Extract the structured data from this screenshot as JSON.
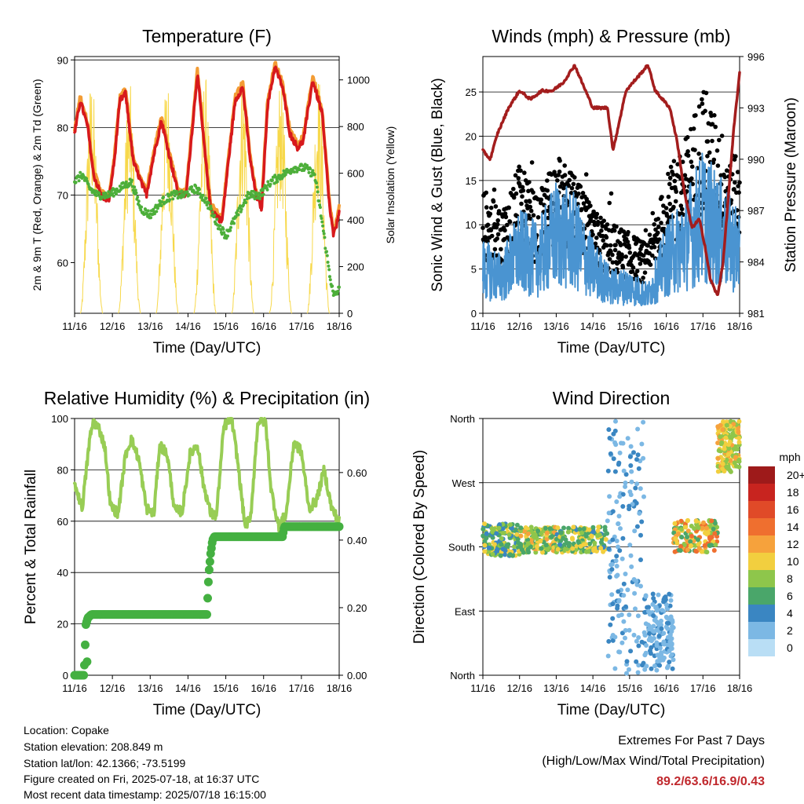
{
  "info": {
    "location": "Location: Copake",
    "elevation": "Station elevation: 208.849 m",
    "latlon": "Station lat/lon: 42.1366; -73.5199",
    "created": "Figure created on Fri, 2025-07-18, at 16:37 UTC",
    "recent": "Most recent data timestamp: 2025/07/18 16:15:00"
  },
  "extremes": {
    "line1": "Extremes For Past 7 Days",
    "line2": "(High/Low/Max Wind/Total Precipitation)",
    "values": "89.2/63.6/16.9/0.43"
  },
  "colors": {
    "temp_9m": "#d7191c",
    "temp_2m": "#f39c34",
    "dewpoint": "#4daf3a",
    "solar": "#f7d84a",
    "gust": "#000000",
    "wind": "#4a94d1",
    "pressure": "#a31d1d",
    "rh": "#98cd55",
    "precip": "#44b041"
  },
  "chart_data": [
    {
      "type": "line",
      "title": "Temperature (F)",
      "xlabel": "Time (Day/UTC)",
      "ylabel": "2m & 9m T (Red, Orange) & 2m Td (Green)",
      "y2label": "Solar Insolation (Yellow)",
      "x_ticks": [
        "11/16",
        "12/16",
        "13/16",
        "14/16",
        "15/16",
        "16/16",
        "17/16",
        "18/16"
      ],
      "xlim": [
        0,
        7
      ],
      "ylim": [
        52.5,
        90.5
      ],
      "y_ticks": [
        60,
        70,
        80,
        90
      ],
      "y2lim": [
        0,
        1100
      ],
      "y2_ticks": [
        0,
        200,
        400,
        600,
        800,
        1000
      ],
      "grid": "horizontal",
      "series": [
        {
          "name": "2m & 9m T",
          "axis": "left",
          "x": [
            0,
            0.15,
            0.35,
            0.5,
            0.7,
            0.9,
            1.05,
            1.2,
            1.35,
            1.55,
            1.75,
            1.9,
            2.1,
            2.3,
            2.5,
            2.75,
            2.95,
            3.1,
            3.25,
            3.45,
            3.6,
            3.75,
            3.9,
            4.05,
            4.25,
            4.45,
            4.65,
            4.8,
            4.95,
            5.1,
            5.3,
            5.5,
            5.7,
            5.9,
            6.05,
            6.3,
            6.55,
            6.75,
            6.85,
            6.95,
            7.0
          ],
          "values": [
            79,
            84,
            80,
            73,
            70,
            69,
            75,
            84,
            85,
            75,
            72,
            70,
            76,
            81,
            76,
            70,
            70,
            79,
            88,
            76,
            68,
            67,
            66,
            74,
            84,
            86,
            75,
            70,
            68,
            83,
            89,
            86,
            79,
            77,
            78,
            87,
            82,
            68,
            64,
            66,
            68
          ]
        },
        {
          "name": "2m Td",
          "axis": "left",
          "x": [
            0,
            0.2,
            0.4,
            0.6,
            0.9,
            1.2,
            1.5,
            1.75,
            2.0,
            2.3,
            2.6,
            2.9,
            3.2,
            3.5,
            3.75,
            4.0,
            4.3,
            4.6,
            4.9,
            5.2,
            5.5,
            5.8,
            6.1,
            6.35,
            6.55,
            6.7,
            6.85,
            7.0
          ],
          "values": [
            72,
            73,
            71,
            70,
            70,
            71,
            72,
            68,
            67,
            69,
            70,
            70,
            71,
            69,
            66,
            64,
            67,
            70,
            70,
            72,
            73,
            74,
            74,
            73,
            66,
            60,
            55,
            56
          ]
        },
        {
          "name": "Solar Insolation",
          "axis": "right",
          "days": [
            0.45,
            1.45,
            2.45,
            3.45,
            4.45,
            5.45,
            6.45
          ],
          "peaks": [
            1030,
            1000,
            1030,
            1040,
            1040,
            1030,
            1040
          ]
        }
      ]
    },
    {
      "type": "line",
      "title": "Winds (mph) & Pressure (mb)",
      "xlabel": "Time (Day/UTC)",
      "ylabel": "Sonic Wind & Gust (Blue, Black)",
      "y2label": "Station Pressure (Maroon)",
      "x_ticks": [
        "11/16",
        "12/16",
        "13/16",
        "14/16",
        "15/16",
        "16/16",
        "17/16",
        "18/16"
      ],
      "xlim": [
        0,
        7
      ],
      "ylim": [
        0,
        29
      ],
      "y_ticks": [
        0,
        5,
        10,
        15,
        20,
        25
      ],
      "y2lim": [
        981,
        996
      ],
      "y2_ticks": [
        981,
        984,
        987,
        990,
        993,
        996
      ],
      "grid": "horizontal",
      "series": [
        {
          "name": "Gust",
          "x": [
            0,
            0.5,
            1,
            1.5,
            2,
            2.5,
            3,
            3.5,
            4,
            4.5,
            5,
            5.5,
            6,
            6.5,
            7
          ],
          "values": [
            11,
            9,
            13,
            10,
            14,
            12,
            9,
            8,
            7,
            6,
            12,
            15,
            20,
            16,
            13
          ]
        },
        {
          "name": "Wind",
          "x": [
            0,
            0.5,
            1,
            1.5,
            2,
            2.5,
            3,
            3.5,
            4,
            4.5,
            5,
            5.5,
            6,
            6.5,
            7
          ],
          "values": [
            5,
            4,
            7,
            6,
            9,
            8,
            5,
            3,
            3,
            2,
            6,
            8,
            11,
            9,
            7
          ]
        },
        {
          "name": "Pressure",
          "x": [
            0,
            0.2,
            0.4,
            0.7,
            1.0,
            1.3,
            1.6,
            1.9,
            2.2,
            2.5,
            2.8,
            3.0,
            3.2,
            3.4,
            3.55,
            3.7,
            3.9,
            4.1,
            4.3,
            4.5,
            4.7,
            4.9,
            5.1,
            5.3,
            5.5,
            5.7,
            5.9,
            6.05,
            6.2,
            6.4,
            6.55,
            6.7,
            6.85,
            7.0
          ],
          "values": [
            990.5,
            990,
            991.5,
            993,
            994,
            993.5,
            994,
            994,
            994.5,
            995.5,
            994,
            993,
            993,
            993,
            990.5,
            992,
            994,
            994.5,
            995,
            995.5,
            994,
            993.5,
            993,
            991,
            988,
            986,
            986.5,
            985,
            983,
            982,
            984,
            988,
            992,
            995
          ]
        }
      ]
    },
    {
      "type": "line",
      "title": "Relative Humidity (%) & Precipitation (in)",
      "xlabel": "Time (Day/UTC)",
      "ylabel": "Percent & Total Rainfall",
      "x_ticks": [
        "11/16",
        "12/16",
        "13/16",
        "14/16",
        "15/16",
        "16/16",
        "17/16",
        "18/16"
      ],
      "xlim": [
        0,
        7
      ],
      "ylim": [
        0,
        100
      ],
      "y_ticks": [
        0,
        20,
        40,
        60,
        80,
        100
      ],
      "y2lim": [
        0,
        0.76
      ],
      "y2_ticks": [
        "0.00",
        "0.20",
        "0.40",
        "0.60"
      ],
      "grid": "horizontal",
      "series": [
        {
          "name": "RH",
          "x": [
            0,
            0.2,
            0.4,
            0.5,
            0.65,
            0.8,
            0.95,
            1.15,
            1.35,
            1.5,
            1.7,
            1.9,
            2.1,
            2.25,
            2.45,
            2.65,
            2.85,
            3.05,
            3.25,
            3.4,
            3.6,
            3.75,
            3.95,
            4.15,
            4.3,
            4.5,
            4.65,
            4.85,
            5.05,
            5.2,
            5.4,
            5.6,
            5.8,
            6.0,
            6.2,
            6.4,
            6.6,
            6.8,
            7.0
          ],
          "values": [
            75,
            65,
            92,
            99,
            96,
            89,
            66,
            63,
            86,
            92,
            84,
            65,
            63,
            90,
            86,
            64,
            64,
            86,
            90,
            75,
            63,
            62,
            97,
            100,
            85,
            59,
            60,
            99,
            99,
            72,
            58,
            63,
            91,
            87,
            65,
            68,
            80,
            65,
            60
          ]
        },
        {
          "name": "Precipitation",
          "x": [
            0,
            0.25,
            0.3,
            0.35,
            0.45,
            3.0,
            3.5,
            3.55,
            3.6,
            3.65,
            3.7,
            5.5,
            5.55,
            7.0
          ],
          "values": [
            0,
            0,
            0.15,
            0.17,
            0.18,
            0.18,
            0.18,
            0.3,
            0.36,
            0.4,
            0.41,
            0.41,
            0.44,
            0.44
          ]
        }
      ]
    },
    {
      "type": "scatter",
      "title": "Wind Direction",
      "xlabel": "Time (Day/UTC)",
      "ylabel": "Direction (Colored By Speed)",
      "x_ticks": [
        "11/16",
        "12/16",
        "13/16",
        "14/16",
        "15/16",
        "16/16",
        "17/16",
        "18/16"
      ],
      "xlim": [
        0,
        7
      ],
      "y_ticks": [
        "North",
        "East",
        "South",
        "West",
        "North"
      ],
      "ylim": [
        0,
        360
      ],
      "grid": "horizontal",
      "legend_title": "mph",
      "legend": [
        {
          "label": "20+",
          "color": "#9e1a1a"
        },
        {
          "label": "18",
          "color": "#c8241f"
        },
        {
          "label": "16",
          "color": "#e04a28"
        },
        {
          "label": "14",
          "color": "#ef6f2f"
        },
        {
          "label": "12",
          "color": "#f6a23c"
        },
        {
          "label": "10",
          "color": "#f2cf3f"
        },
        {
          "label": "8",
          "color": "#8ec64b"
        },
        {
          "label": "6",
          "color": "#4aa66a"
        },
        {
          "label": "4",
          "color": "#3a86c2"
        },
        {
          "label": "2",
          "color": "#7cb8e4"
        },
        {
          "label": "0",
          "color": "#b9def5"
        }
      ],
      "legend_placement": "right",
      "clusters": [
        {
          "x": [
            0,
            1.0
          ],
          "y": [
            165,
            215
          ],
          "speed": [
            4,
            10
          ]
        },
        {
          "x": [
            1.0,
            2.0
          ],
          "y": [
            170,
            210
          ],
          "speed": [
            5,
            12
          ]
        },
        {
          "x": [
            2.0,
            3.4
          ],
          "y": [
            170,
            210
          ],
          "speed": [
            4,
            11
          ]
        },
        {
          "x": [
            3.4,
            4.4
          ],
          "y": [
            0,
            360
          ],
          "speed": [
            1,
            5
          ]
        },
        {
          "x": [
            4.4,
            5.2
          ],
          "y": [
            0,
            120
          ],
          "speed": [
            1,
            4
          ]
        },
        {
          "x": [
            5.2,
            6.4
          ],
          "y": [
            170,
            220
          ],
          "speed": [
            5,
            15
          ]
        },
        {
          "x": [
            6.4,
            7.0
          ],
          "y": [
            280,
            360
          ],
          "speed": [
            7,
            12
          ]
        }
      ]
    }
  ]
}
